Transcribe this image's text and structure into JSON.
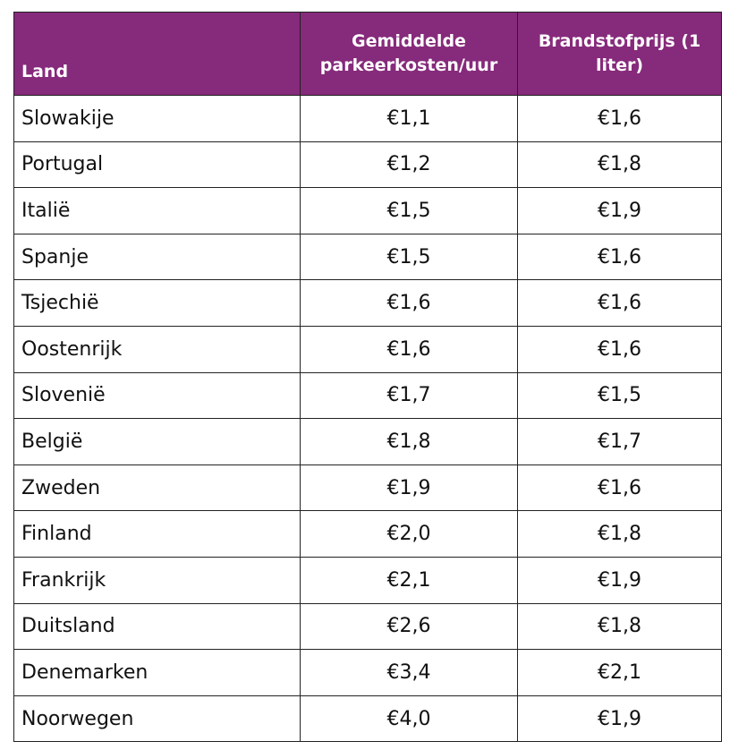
{
  "headers": {
    "land": "Land",
    "parking": "Gemiddelde parkeerkosten/uur",
    "fuel": "Brandstofprijs (1 liter)"
  },
  "rows": [
    {
      "country": "Slowakije",
      "parking": "€1,1",
      "fuel": "€1,6"
    },
    {
      "country": "Portugal",
      "parking": "€1,2",
      "fuel": "€1,8"
    },
    {
      "country": "Italië",
      "parking": "€1,5",
      "fuel": "€1,9"
    },
    {
      "country": "Spanje",
      "parking": "€1,5",
      "fuel": "€1,6"
    },
    {
      "country": "Tsjechië",
      "parking": "€1,6",
      "fuel": "€1,6"
    },
    {
      "country": "Oostenrijk",
      "parking": "€1,6",
      "fuel": "€1,6"
    },
    {
      "country": "Slovenië",
      "parking": "€1,7",
      "fuel": "€1,5"
    },
    {
      "country": "België",
      "parking": "€1,8",
      "fuel": "€1,7"
    },
    {
      "country": "Zweden",
      "parking": "€1,9",
      "fuel": "€1,6"
    },
    {
      "country": "Finland",
      "parking": "€2,0",
      "fuel": "€1,8"
    },
    {
      "country": "Frankrijk",
      "parking": "€2,1",
      "fuel": "€1,9"
    },
    {
      "country": "Duitsland",
      "parking": "€2,6",
      "fuel": "€1,8"
    },
    {
      "country": "Denemarken",
      "parking": "€3,4",
      "fuel": "€2,1"
    },
    {
      "country": "Noorwegen",
      "parking": "€4,0",
      "fuel": "€1,9"
    }
  ],
  "colors": {
    "header_bg": "#862a7b",
    "header_text": "#ffffff",
    "border": "#222222"
  }
}
